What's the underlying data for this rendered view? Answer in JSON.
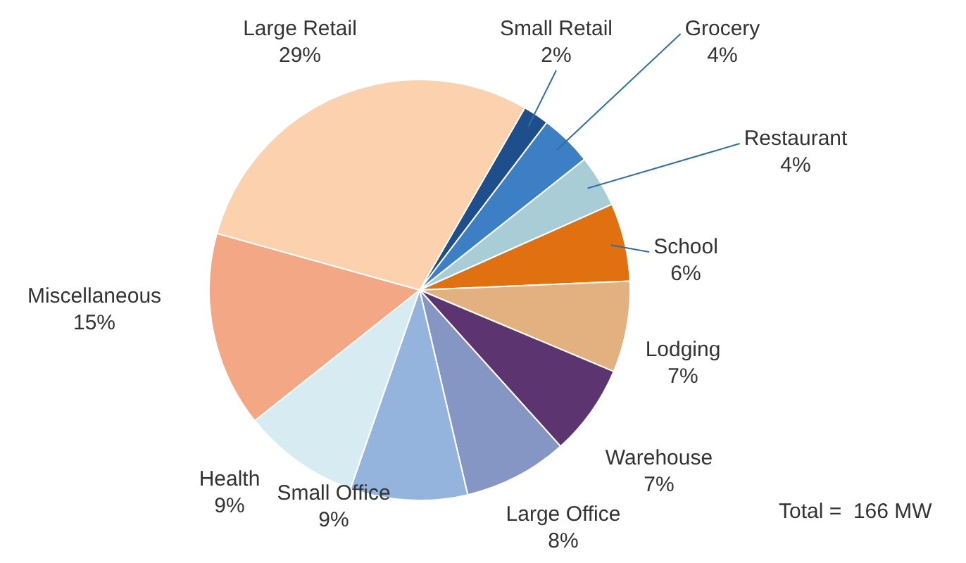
{
  "chart_data": {
    "type": "pie",
    "categories": [
      "Small Retail",
      "Grocery",
      "Restaurant",
      "School",
      "Lodging",
      "Warehouse",
      "Large Office",
      "Small Office",
      "Health",
      "Miscellaneous",
      "Large Retail"
    ],
    "values": [
      2,
      4,
      4,
      6,
      7,
      7,
      8,
      9,
      9,
      15,
      29
    ],
    "value_labels": [
      "2%",
      "4%",
      "4%",
      "6%",
      "7%",
      "7%",
      "8%",
      "9%",
      "9%",
      "15%",
      "29%"
    ],
    "colors": [
      "#1f4e8c",
      "#3d7fc4",
      "#a9cdd6",
      "#e07010",
      "#e3b07f",
      "#5c3470",
      "#8596c4",
      "#94b4de",
      "#d7ecf2",
      "#f4a784",
      "#fcd1ad"
    ],
    "annotations": [
      "Total =  166 MW"
    ],
    "legend": false
  }
}
